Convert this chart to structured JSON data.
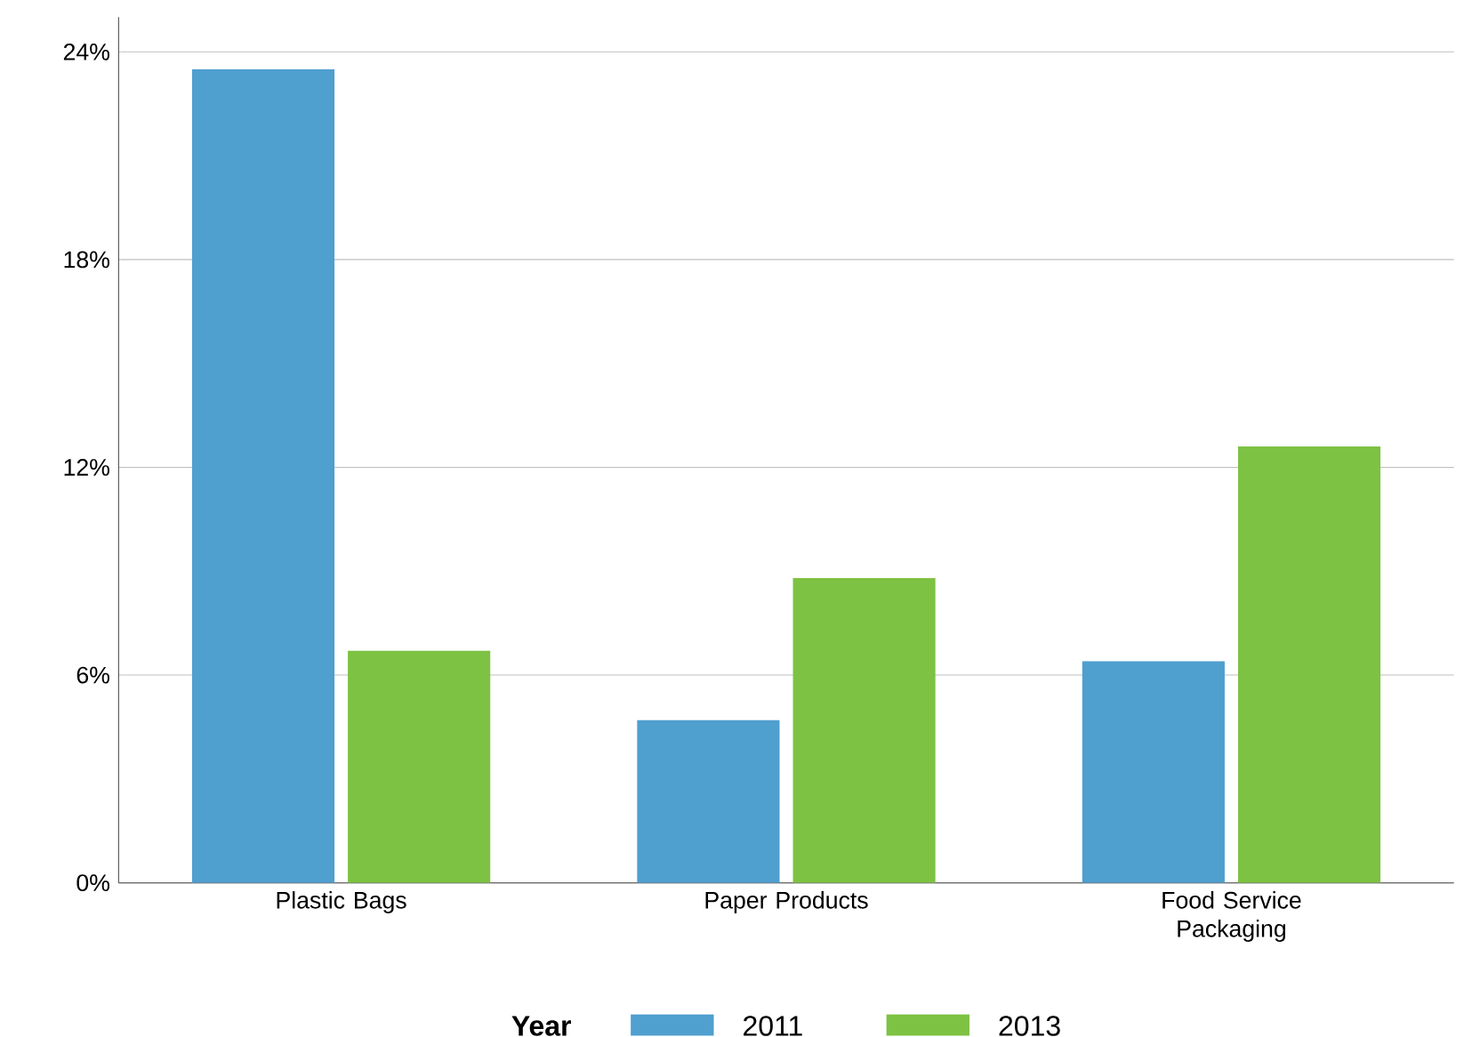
{
  "chart_data": {
    "type": "bar",
    "categories": [
      "Plastic Bags",
      "Paper Products",
      "Food Service Packaging"
    ],
    "series": [
      {
        "name": "2011",
        "color": "#4f9fcf",
        "values": [
          23.5,
          4.7,
          6.4
        ]
      },
      {
        "name": "2013",
        "color": "#7dc243",
        "values": [
          6.7,
          8.8,
          12.6
        ]
      }
    ],
    "ylim": [
      0,
      25
    ],
    "yticks": [
      {
        "value": 0,
        "label": "0%"
      },
      {
        "value": 6,
        "label": "6%"
      },
      {
        "value": 12,
        "label": "12%"
      },
      {
        "value": 18,
        "label": "18%"
      },
      {
        "value": 24,
        "label": "24%"
      }
    ],
    "grid": "y",
    "legend": "bottom",
    "legend_title": "Year"
  }
}
